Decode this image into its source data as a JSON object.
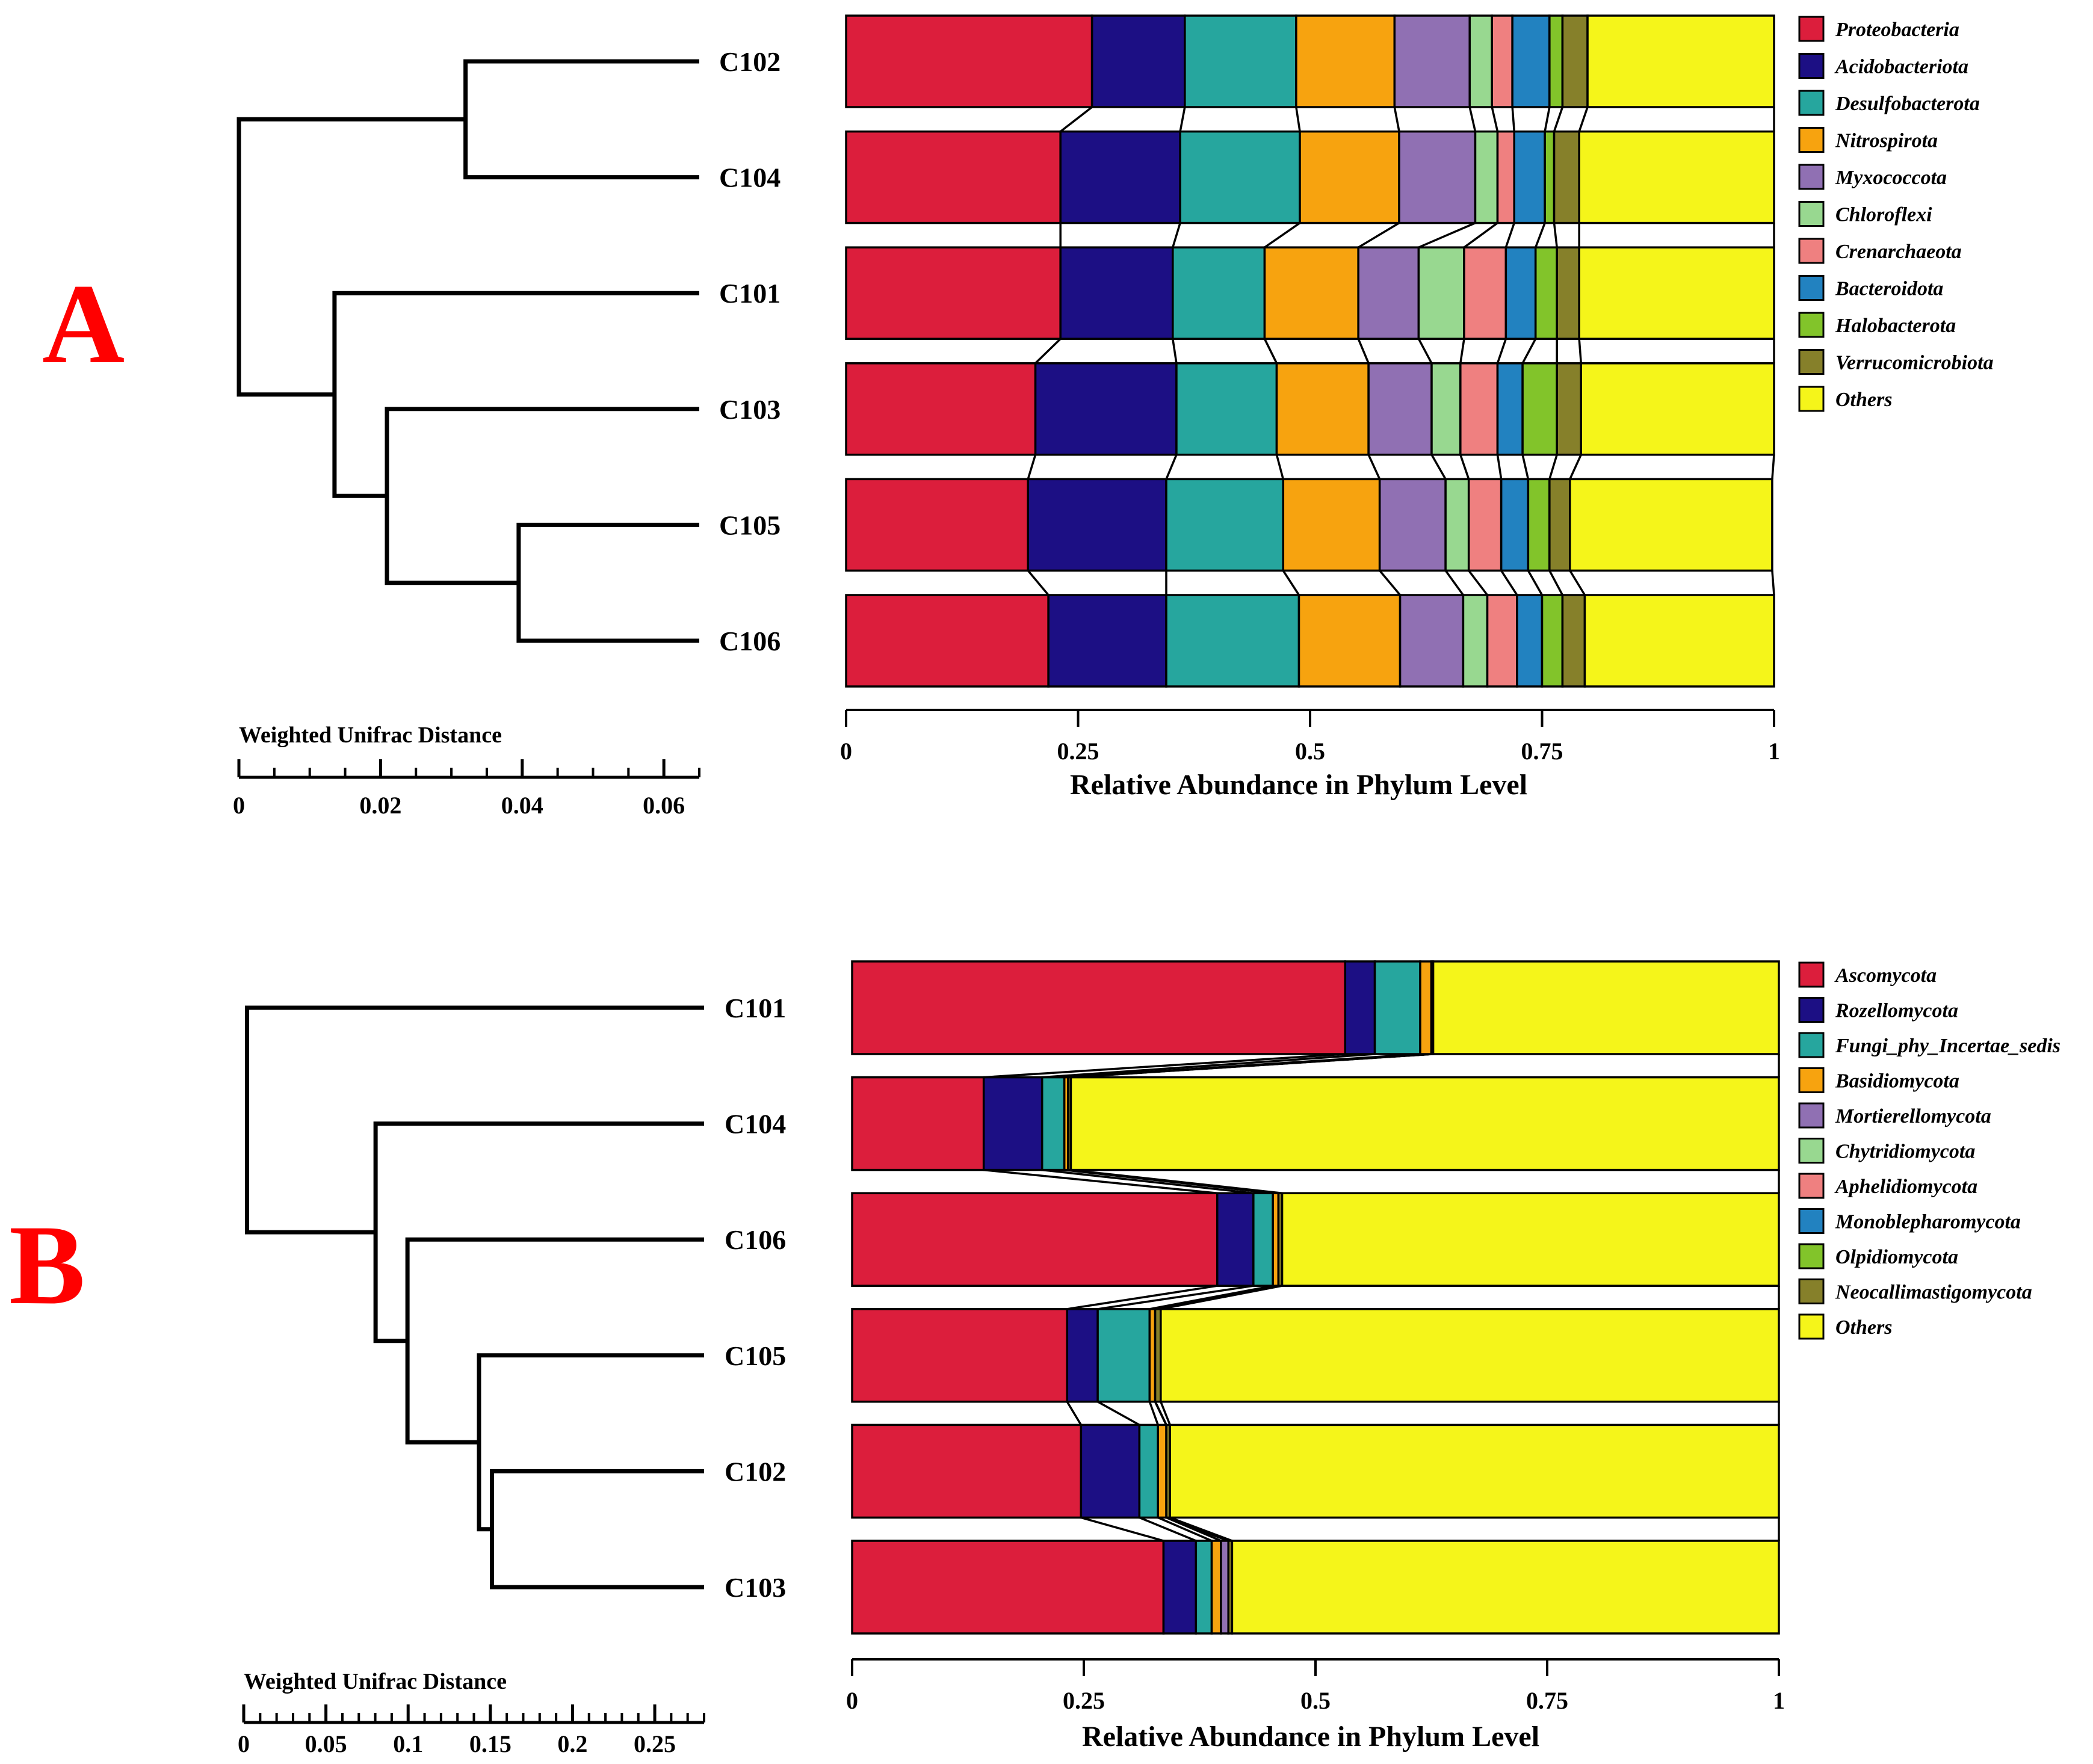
{
  "chart_data": [
    {
      "panel": "A",
      "type": "bar",
      "orientation": "horizontal",
      "stacked": true,
      "xlabel": "Relative Abundance in Phylum Level",
      "xlim": [
        0,
        1
      ],
      "xticks": [
        "0",
        "0.25",
        "0.5",
        "0.75",
        "1"
      ],
      "categories": [
        "C102",
        "C104",
        "C101",
        "C103",
        "C105",
        "C106"
      ],
      "series": [
        {
          "name": "Proteobacteria",
          "color": "#dc1e3c",
          "values": [
            0.265,
            0.231,
            0.231,
            0.204,
            0.196,
            0.218
          ]
        },
        {
          "name": "Acidobacteriota",
          "color": "#1c0f84",
          "values": [
            0.1,
            0.129,
            0.121,
            0.152,
            0.149,
            0.127
          ]
        },
        {
          "name": "Desulfobacterota",
          "color": "#26a69e",
          "values": [
            0.12,
            0.129,
            0.099,
            0.108,
            0.126,
            0.143
          ]
        },
        {
          "name": "Nitrospirota",
          "color": "#f7a30f",
          "values": [
            0.106,
            0.107,
            0.101,
            0.099,
            0.104,
            0.109
          ]
        },
        {
          "name": "Myxococcota",
          "color": "#9070b3",
          "values": [
            0.081,
            0.082,
            0.065,
            0.068,
            0.071,
            0.068
          ]
        },
        {
          "name": "Chloroflexi",
          "color": "#98d890",
          "values": [
            0.024,
            0.024,
            0.049,
            0.031,
            0.025,
            0.026
          ]
        },
        {
          "name": "Crenarchaeota",
          "color": "#ef8080",
          "values": [
            0.022,
            0.018,
            0.045,
            0.04,
            0.035,
            0.032
          ]
        },
        {
          "name": "Bacteroidota",
          "color": "#2282c0",
          "values": [
            0.04,
            0.033,
            0.032,
            0.027,
            0.029,
            0.027
          ]
        },
        {
          "name": "Halobacterota",
          "color": "#82c42a",
          "values": [
            0.014,
            0.01,
            0.023,
            0.037,
            0.023,
            0.022
          ]
        },
        {
          "name": "Verrucomicrobiota",
          "color": "#86802a",
          "values": [
            0.027,
            0.027,
            0.024,
            0.026,
            0.022,
            0.024
          ]
        },
        {
          "name": "Others",
          "color": "#f5f51a",
          "values": [
            0.201,
            0.21,
            0.21,
            0.208,
            0.218,
            0.204
          ]
        }
      ],
      "dendrogram": {
        "title": "Weighted Unifrac Distance",
        "scale_ticks": [
          "0",
          "0.02",
          "0.04",
          "0.06"
        ],
        "scale_max": 0.065,
        "scale_minor": 0.005,
        "leaves": [
          "C102",
          "C104",
          "C101",
          "C103",
          "C105",
          "C106"
        ],
        "merges": [
          {
            "a": "C105",
            "b": "C106",
            "height": 0.0255
          },
          {
            "a": "C103",
            "b": "C105+C106",
            "height": 0.0441
          },
          {
            "a": "C101",
            "b": "C103+C105+C106",
            "height": 0.0515
          },
          {
            "a": "C102",
            "b": "C104",
            "height": 0.033
          },
          {
            "a": "C102+C104",
            "b": "C101+C103+C105+C106",
            "height": 0.065
          }
        ]
      }
    },
    {
      "panel": "B",
      "type": "bar",
      "orientation": "horizontal",
      "stacked": true,
      "xlabel": "Relative Abundance in Phylum Level",
      "xlim": [
        0,
        1
      ],
      "xticks": [
        "0",
        "0.25",
        "0.5",
        "0.75",
        "1"
      ],
      "categories": [
        "C101",
        "C104",
        "C106",
        "C105",
        "C102",
        "C103"
      ],
      "series": [
        {
          "name": "Ascomycota",
          "color": "#dc1e3c",
          "values": [
            0.532,
            0.142,
            0.394,
            0.232,
            0.247,
            0.336
          ]
        },
        {
          "name": "Rozellomycota",
          "color": "#1c0f84",
          "values": [
            0.032,
            0.063,
            0.039,
            0.033,
            0.063,
            0.035
          ]
        },
        {
          "name": "Fungi_phy_Incertae_sedis",
          "color": "#26a69e",
          "values": [
            0.049,
            0.024,
            0.021,
            0.056,
            0.02,
            0.017
          ]
        },
        {
          "name": "Basidiomycota",
          "color": "#f7a30f",
          "values": [
            0.012,
            0.004,
            0.006,
            0.006,
            0.009,
            0.01
          ]
        },
        {
          "name": "Mortierellomycota",
          "color": "#9070b3",
          "values": [
            0.0,
            0.0,
            0.0,
            0.0,
            0.0,
            0.008
          ]
        },
        {
          "name": "Chytridiomycota",
          "color": "#98d890",
          "values": [
            0.0,
            0.0,
            0.0,
            0.0,
            0.0,
            0.0
          ]
        },
        {
          "name": "Aphelidiomycota",
          "color": "#ef8080",
          "values": [
            0.0,
            0.0,
            0.0,
            0.0,
            0.0,
            0.0
          ]
        },
        {
          "name": "Monoblepharomycota",
          "color": "#2282c0",
          "values": [
            0.0,
            0.0,
            0.0,
            0.0,
            0.0,
            0.0
          ]
        },
        {
          "name": "Olpidiomycota",
          "color": "#82c42a",
          "values": [
            0.0,
            0.0,
            0.0,
            0.0,
            0.0,
            0.0
          ]
        },
        {
          "name": "Neocallimastigomycota",
          "color": "#86802a",
          "values": [
            0.002,
            0.003,
            0.004,
            0.006,
            0.004,
            0.004
          ]
        },
        {
          "name": "Others",
          "color": "#f5f51a",
          "values": [
            0.373,
            0.764,
            0.536,
            0.667,
            0.657,
            0.59
          ]
        }
      ],
      "dendrogram": {
        "title": "Weighted Unifrac Distance",
        "scale_ticks": [
          "0",
          "0.05",
          "0.1",
          "0.15",
          "0.2",
          "0.25"
        ],
        "scale_max": 0.28,
        "scale_minor": 0.01,
        "leaves": [
          "C101",
          "C104",
          "C106",
          "C105",
          "C102",
          "C103"
        ],
        "merges": [
          {
            "a": "C102",
            "b": "C103",
            "height": 0.129
          },
          {
            "a": "C105",
            "b": "C102+C103",
            "height": 0.1369
          },
          {
            "a": "C106",
            "b": "C105+C102+C103",
            "height": 0.1804
          },
          {
            "a": "C104",
            "b": "C106+C105+C102+C103",
            "height": 0.1998
          },
          {
            "a": "C101",
            "b": "C104+C106+C105+C102+C103",
            "height": 0.278
          }
        ]
      }
    }
  ]
}
